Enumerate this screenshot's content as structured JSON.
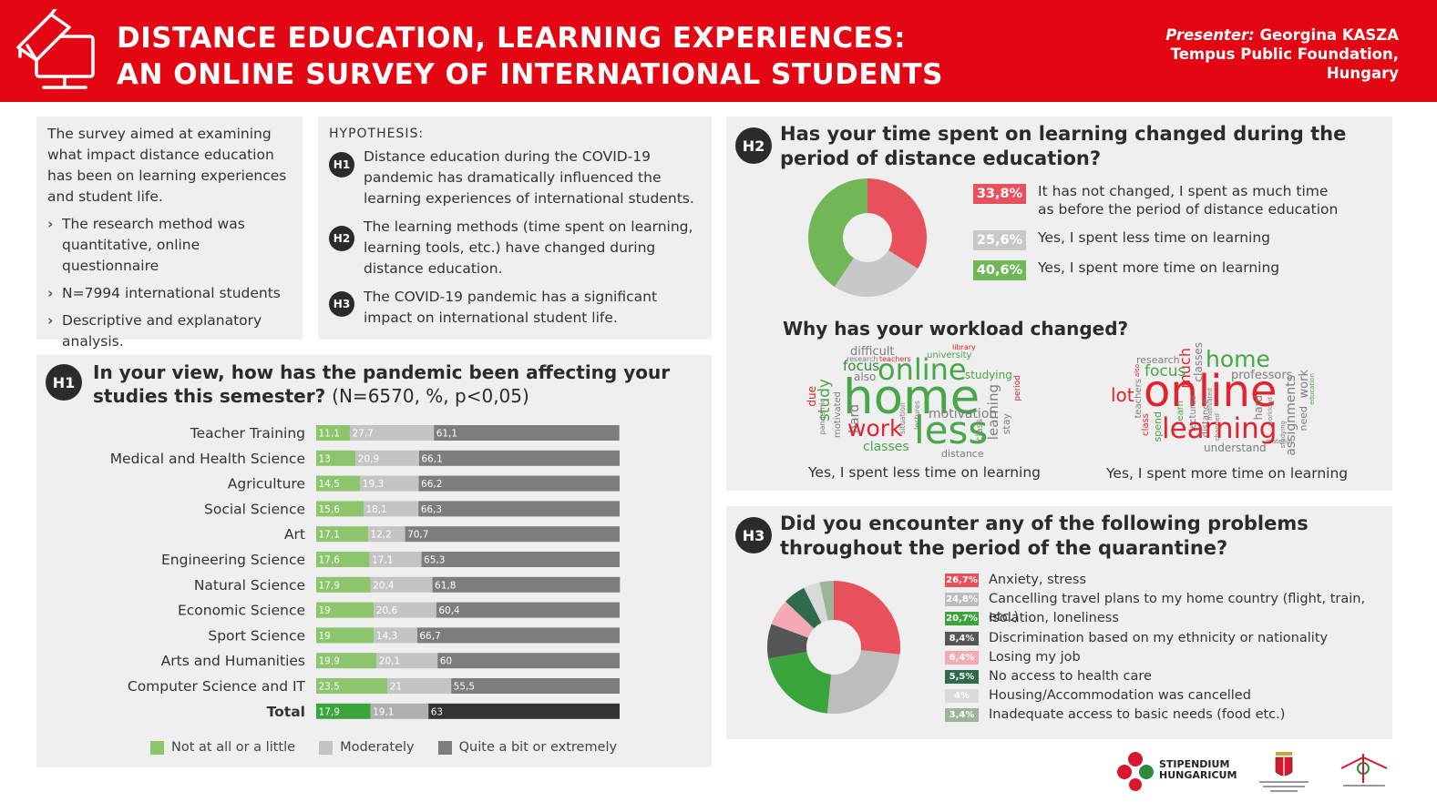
{
  "header": {
    "title_line1": "DISTANCE EDUCATION, LEARNING EXPERIENCES:",
    "title_line2": "AN ONLINE SURVEY OF INTERNATIONAL STUDENTS",
    "presenter_label": "Presenter:",
    "presenter_name": "Georgina KASZA",
    "org_line1": "Tempus Public Foundation,",
    "org_line2": "Hungary"
  },
  "intro": {
    "text": "The survey aimed at examining what impact distance education has been on learning experiences and student life.",
    "bullets": [
      "The research method was quantitative, online questionnaire",
      "N=7994 international students",
      "Descriptive and explanatory analysis."
    ]
  },
  "hypothesis": {
    "label": "HYPOTHESIS:",
    "items": [
      {
        "badge": "H1",
        "text": "Distance education during the COVID-19 pandemic has dramatically influenced the learning experiences of international students."
      },
      {
        "badge": "H2",
        "text": "The learning methods (time spent on learning, learning tools, etc.) have changed during distance education."
      },
      {
        "badge": "H3",
        "text": "The COVID-19 pandemic has a significant impact on international student life."
      }
    ]
  },
  "h1": {
    "badge": "H1",
    "title": "In your view, how has the pandemic been affecting your studies this semester?",
    "note": "(N=6570, %, p<0,05)",
    "legend": [
      "Not at all or a little",
      "Moderately",
      "Quite a bit or extremely"
    ]
  },
  "h2": {
    "badge": "H2",
    "title": "Has your time spent on learning changed during the period of distance education?",
    "legend": [
      {
        "pct": "33,8%",
        "label": "It has not changed, I spent as much time as before the period of distance education"
      },
      {
        "pct": "25,6%",
        "label": "Yes, I spent less time on learning"
      },
      {
        "pct": "40,6%",
        "label": "Yes, I spent more time on learning"
      }
    ],
    "subquestion": "Why has your workload changed?",
    "cloud1_caption": "Yes, I spent less time on learning",
    "cloud2_caption": "Yes, I spent more time on learning",
    "cloud1_words": [
      "home",
      "less",
      "online",
      "work",
      "focus",
      "study",
      "hard",
      "motivation",
      "learning",
      "classes",
      "distance",
      "difficult",
      "university",
      "research",
      "teachers",
      "also",
      "due",
      "pandemic",
      "motivated",
      "lectures",
      "situation",
      "stay",
      "class",
      "period",
      "library",
      "studying"
    ],
    "cloud2_words": [
      "online",
      "learning",
      "home",
      "focus",
      "lot",
      "research",
      "much",
      "classes",
      "professors",
      "work",
      "teachers",
      "class",
      "spend",
      "learn",
      "lectures",
      "distance",
      "hard",
      "assignments",
      "need",
      "understand",
      "studying",
      "also",
      "workload",
      "motivated",
      "changed",
      "education",
      "material"
    ]
  },
  "h3": {
    "badge": "H3",
    "title": "Did you encounter any of the following problems throughout the period of the quarantine?",
    "legend": [
      {
        "pct": "26,7%",
        "label": "Anxiety, stress"
      },
      {
        "pct": "24,8%",
        "label": "Cancelling travel plans to my home country (flight, train, etc.)"
      },
      {
        "pct": "20,7%",
        "label": "Isolation, loneliness"
      },
      {
        "pct": "8,4%",
        "label": "Discrimination based on my ethnicity or nationality"
      },
      {
        "pct": "6,4%",
        "label": "Losing my job"
      },
      {
        "pct": "5,5%",
        "label": "No access to health care"
      },
      {
        "pct": "4%",
        "label": "Housing/Accommodation was cancelled"
      },
      {
        "pct": "3,4%",
        "label": "Inadequate access to basic needs (food etc.)"
      }
    ]
  },
  "footer": {
    "sh_line1": "STIPENDIUM",
    "sh_line2": "HUNGARICUM"
  },
  "colors": {
    "brand_red": "#e30613",
    "green": "#8cc56c",
    "green_dark": "#3aa53a",
    "light_gray": "#c4c4c4",
    "dark_gray": "#7d7d7d",
    "total_dark": "#333333",
    "h2_red": "#e8505b",
    "h2_gray": "#c8c8c8",
    "h2_green": "#71b758"
  },
  "chart_data": [
    {
      "type": "bar",
      "stacked": true,
      "orientation": "horizontal",
      "categories": [
        "Teacher Training",
        "Medical and Health Science",
        "Agriculture",
        "Social Science",
        "Art",
        "Engineering Science",
        "Natural Science",
        "Economic Science",
        "Sport Science",
        "Arts and Humanities",
        "Computer Science and IT",
        "Total"
      ],
      "series": [
        {
          "name": "Not at all or a little",
          "values": [
            11.1,
            13,
            14.5,
            15.6,
            17.1,
            17.6,
            17.9,
            19,
            19,
            19.9,
            23.5,
            17.9
          ],
          "labels": [
            "11,1",
            "13",
            "14,5",
            "15,6",
            "17,1",
            "17,6",
            "17,9",
            "19",
            "19",
            "19,9",
            "23,5",
            "17,9"
          ]
        },
        {
          "name": "Moderately",
          "values": [
            27.7,
            20.9,
            19.3,
            18.1,
            12.2,
            17.1,
            20.4,
            20.6,
            14.3,
            20.1,
            21,
            19.1
          ],
          "labels": [
            "27,7",
            "20,9",
            "19,3",
            "18,1",
            "12,2",
            "17,1",
            "20,4",
            "20,6",
            "14,3",
            "20,1",
            "21",
            "19,1"
          ]
        },
        {
          "name": "Quite a bit or extremely",
          "values": [
            61.1,
            66.1,
            66.2,
            66.3,
            70.7,
            65.3,
            61.8,
            60.4,
            66.7,
            60,
            55.5,
            63
          ],
          "labels": [
            "61,1",
            "66,1",
            "66,2",
            "66,3",
            "70,7",
            "65,3",
            "61,8",
            "60,4",
            "66,7",
            "60",
            "55,5",
            "63"
          ]
        }
      ]
    },
    {
      "type": "pie",
      "donut": true,
      "labels": [
        "It has not changed, I spent as much time as before the period of distance education",
        "Yes, I spent less time on learning",
        "Yes, I spent more time on learning"
      ],
      "values": [
        33.8,
        25.6,
        40.6
      ]
    },
    {
      "type": "pie",
      "donut": true,
      "labels": [
        "Anxiety, stress",
        "Cancelling travel plans to my home country (flight, train, etc.)",
        "Isolation, loneliness",
        "Discrimination based on my ethnicity or nationality",
        "Losing my job",
        "No access to health care",
        "Housing/Accommodation was cancelled",
        "Inadequate access to basic needs (food etc.)"
      ],
      "values": [
        26.7,
        24.8,
        20.7,
        8.4,
        6.4,
        5.5,
        4,
        3.4
      ]
    }
  ]
}
